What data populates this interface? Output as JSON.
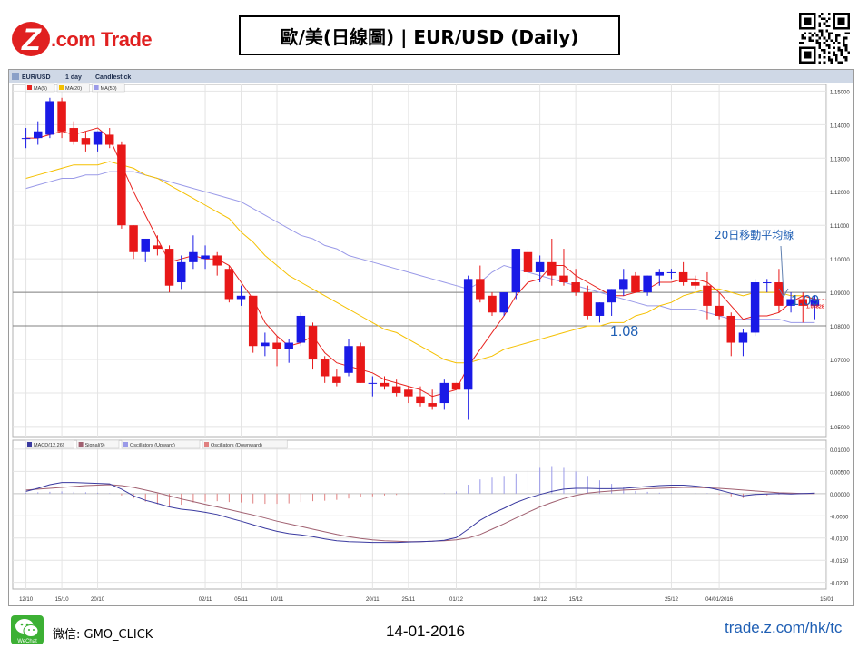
{
  "brand": {
    "logo_text": "Z.com Trade",
    "logo_colors": {
      "z": "#e02020",
      "trade": "#e02020"
    }
  },
  "header": {
    "title": "歐/美(日線圖) | EUR/USD (Daily)"
  },
  "qr": {
    "icon": "qr-code"
  },
  "chart_toolbar": {
    "symbol": "EUR/USD",
    "interval": "1 day",
    "style": "Candlestick"
  },
  "main_legend": [
    {
      "label": "MA(5)",
      "color": "#e8231f"
    },
    {
      "label": "MA(20)",
      "color": "#f5c000"
    },
    {
      "label": "MA(50)",
      "color": "#9a9ae8"
    }
  ],
  "macd_legend": [
    {
      "label": "MACD(12,26)",
      "color": "#3a3aa0"
    },
    {
      "label": "Signal(9)",
      "color": "#a06070"
    },
    {
      "label": "Oscillators (Upward)",
      "color": "#9a9ae8"
    },
    {
      "label": "Oscillators (Downward)",
      "color": "#e08080"
    }
  ],
  "annotations": {
    "ma20_note": "20日移動平均線",
    "level_109": "1.09",
    "level_108": "1.08",
    "last_price": "1.08828"
  },
  "colors": {
    "up_candle": "#1a1ae6",
    "down_candle": "#e81818",
    "ma5": "#e8231f",
    "ma20": "#f5c000",
    "ma50": "#9a9ae8",
    "macd": "#3a3aa0",
    "signal": "#a06070",
    "annotation": "#1f5fb4",
    "hline": "#808080"
  },
  "chart_data": [
    {
      "type": "candlestick",
      "title": "EUR/USD 1 day Candlestick",
      "y_ticks": [
        "1.15000",
        "1.14000",
        "1.13000",
        "1.12000",
        "1.11000",
        "1.10000",
        "1.09000",
        "1.08000",
        "1.07000",
        "1.06000",
        "1.05000"
      ],
      "ylim": [
        1.047,
        1.152
      ],
      "x_tick_labels": [
        {
          "index": 0,
          "label": "12/10"
        },
        {
          "index": 3,
          "label": "15/10"
        },
        {
          "index": 6,
          "label": "20/10"
        },
        {
          "index": 15,
          "label": "02/11"
        },
        {
          "index": 18,
          "label": "05/11"
        },
        {
          "index": 21,
          "label": "10/11"
        },
        {
          "index": 29,
          "label": "20/11"
        },
        {
          "index": 32,
          "label": "25/11"
        },
        {
          "index": 36,
          "label": "01/12"
        },
        {
          "index": 43,
          "label": "10/12"
        },
        {
          "index": 46,
          "label": "15/12"
        },
        {
          "index": 54,
          "label": "25/12"
        },
        {
          "index": 58,
          "label": "04/01/2016"
        },
        {
          "index": 67,
          "label": "15/01"
        }
      ],
      "horizontal_lines": [
        1.09,
        1.08
      ],
      "candles": [
        {
          "o": 1.136,
          "h": 1.139,
          "l": 1.133,
          "c": 1.136
        },
        {
          "o": 1.136,
          "h": 1.141,
          "l": 1.134,
          "c": 1.138
        },
        {
          "o": 1.137,
          "h": 1.148,
          "l": 1.136,
          "c": 1.147
        },
        {
          "o": 1.147,
          "h": 1.148,
          "l": 1.136,
          "c": 1.138
        },
        {
          "o": 1.139,
          "h": 1.141,
          "l": 1.134,
          "c": 1.135
        },
        {
          "o": 1.136,
          "h": 1.138,
          "l": 1.132,
          "c": 1.134
        },
        {
          "o": 1.134,
          "h": 1.138,
          "l": 1.132,
          "c": 1.138
        },
        {
          "o": 1.137,
          "h": 1.139,
          "l": 1.133,
          "c": 1.134
        },
        {
          "o": 1.134,
          "h": 1.135,
          "l": 1.109,
          "c": 1.11
        },
        {
          "o": 1.11,
          "h": 1.11,
          "l": 1.1,
          "c": 1.102
        },
        {
          "o": 1.102,
          "h": 1.106,
          "l": 1.099,
          "c": 1.106
        },
        {
          "o": 1.104,
          "h": 1.107,
          "l": 1.101,
          "c": 1.103
        },
        {
          "o": 1.103,
          "h": 1.104,
          "l": 1.09,
          "c": 1.092
        },
        {
          "o": 1.093,
          "h": 1.101,
          "l": 1.091,
          "c": 1.099
        },
        {
          "o": 1.099,
          "h": 1.107,
          "l": 1.097,
          "c": 1.102
        },
        {
          "o": 1.1,
          "h": 1.104,
          "l": 1.097,
          "c": 1.101
        },
        {
          "o": 1.101,
          "h": 1.102,
          "l": 1.095,
          "c": 1.098
        },
        {
          "o": 1.097,
          "h": 1.098,
          "l": 1.087,
          "c": 1.088
        },
        {
          "o": 1.088,
          "h": 1.092,
          "l": 1.086,
          "c": 1.089
        },
        {
          "o": 1.089,
          "h": 1.089,
          "l": 1.072,
          "c": 1.074
        },
        {
          "o": 1.074,
          "h": 1.078,
          "l": 1.071,
          "c": 1.075
        },
        {
          "o": 1.075,
          "h": 1.077,
          "l": 1.068,
          "c": 1.073
        },
        {
          "o": 1.073,
          "h": 1.076,
          "l": 1.069,
          "c": 1.075
        },
        {
          "o": 1.075,
          "h": 1.084,
          "l": 1.074,
          "c": 1.083
        },
        {
          "o": 1.08,
          "h": 1.081,
          "l": 1.067,
          "c": 1.07
        },
        {
          "o": 1.07,
          "h": 1.071,
          "l": 1.063,
          "c": 1.065
        },
        {
          "o": 1.065,
          "h": 1.067,
          "l": 1.062,
          "c": 1.063
        },
        {
          "o": 1.066,
          "h": 1.076,
          "l": 1.065,
          "c": 1.074
        },
        {
          "o": 1.074,
          "h": 1.075,
          "l": 1.063,
          "c": 1.063
        },
        {
          "o": 1.063,
          "h": 1.065,
          "l": 1.059,
          "c": 1.063
        },
        {
          "o": 1.063,
          "h": 1.065,
          "l": 1.061,
          "c": 1.062
        },
        {
          "o": 1.062,
          "h": 1.064,
          "l": 1.059,
          "c": 1.06
        },
        {
          "o": 1.061,
          "h": 1.062,
          "l": 1.057,
          "c": 1.059
        },
        {
          "o": 1.059,
          "h": 1.062,
          "l": 1.056,
          "c": 1.057
        },
        {
          "o": 1.057,
          "h": 1.061,
          "l": 1.055,
          "c": 1.056
        },
        {
          "o": 1.057,
          "h": 1.064,
          "l": 1.055,
          "c": 1.063
        },
        {
          "o": 1.063,
          "h": 1.063,
          "l": 1.061,
          "c": 1.061
        },
        {
          "o": 1.061,
          "h": 1.095,
          "l": 1.052,
          "c": 1.094
        },
        {
          "o": 1.094,
          "h": 1.098,
          "l": 1.087,
          "c": 1.088
        },
        {
          "o": 1.089,
          "h": 1.09,
          "l": 1.083,
          "c": 1.084
        },
        {
          "o": 1.084,
          "h": 1.09,
          "l": 1.083,
          "c": 1.09
        },
        {
          "o": 1.09,
          "h": 1.103,
          "l": 1.088,
          "c": 1.103
        },
        {
          "o": 1.102,
          "h": 1.103,
          "l": 1.094,
          "c": 1.096
        },
        {
          "o": 1.096,
          "h": 1.101,
          "l": 1.093,
          "c": 1.099
        },
        {
          "o": 1.099,
          "h": 1.106,
          "l": 1.092,
          "c": 1.095
        },
        {
          "o": 1.095,
          "h": 1.103,
          "l": 1.092,
          "c": 1.093
        },
        {
          "o": 1.093,
          "h": 1.097,
          "l": 1.089,
          "c": 1.09
        },
        {
          "o": 1.09,
          "h": 1.092,
          "l": 1.082,
          "c": 1.083
        },
        {
          "o": 1.083,
          "h": 1.087,
          "l": 1.081,
          "c": 1.087
        },
        {
          "o": 1.087,
          "h": 1.091,
          "l": 1.083,
          "c": 1.091
        },
        {
          "o": 1.091,
          "h": 1.097,
          "l": 1.089,
          "c": 1.094
        },
        {
          "o": 1.095,
          "h": 1.096,
          "l": 1.09,
          "c": 1.09
        },
        {
          "o": 1.09,
          "h": 1.095,
          "l": 1.089,
          "c": 1.095
        },
        {
          "o": 1.095,
          "h": 1.097,
          "l": 1.092,
          "c": 1.096
        },
        {
          "o": 1.096,
          "h": 1.097,
          "l": 1.094,
          "c": 1.096
        },
        {
          "o": 1.096,
          "h": 1.099,
          "l": 1.092,
          "c": 1.093
        },
        {
          "o": 1.093,
          "h": 1.095,
          "l": 1.091,
          "c": 1.092
        },
        {
          "o": 1.092,
          "h": 1.096,
          "l": 1.082,
          "c": 1.086
        },
        {
          "o": 1.086,
          "h": 1.09,
          "l": 1.082,
          "c": 1.083
        },
        {
          "o": 1.083,
          "h": 1.084,
          "l": 1.071,
          "c": 1.075
        },
        {
          "o": 1.075,
          "h": 1.079,
          "l": 1.071,
          "c": 1.078
        },
        {
          "o": 1.078,
          "h": 1.094,
          "l": 1.077,
          "c": 1.093
        },
        {
          "o": 1.093,
          "h": 1.094,
          "l": 1.09,
          "c": 1.093
        },
        {
          "o": 1.093,
          "h": 1.097,
          "l": 1.084,
          "c": 1.086
        },
        {
          "o": 1.086,
          "h": 1.09,
          "l": 1.084,
          "c": 1.088
        },
        {
          "o": 1.088,
          "h": 1.09,
          "l": 1.081,
          "c": 1.086
        },
        {
          "o": 1.086,
          "h": 1.089,
          "l": 1.082,
          "c": 1.088
        }
      ],
      "ma5": [
        1.136,
        1.136,
        1.137,
        1.138,
        1.137,
        1.138,
        1.139,
        1.136,
        1.128,
        1.12,
        1.113,
        1.106,
        1.099,
        1.1,
        1.101,
        1.1,
        1.1,
        1.098,
        1.093,
        1.088,
        1.081,
        1.077,
        1.074,
        1.075,
        1.077,
        1.072,
        1.069,
        1.068,
        1.067,
        1.066,
        1.064,
        1.063,
        1.062,
        1.061,
        1.059,
        1.06,
        1.061,
        1.068,
        1.073,
        1.078,
        1.083,
        1.089,
        1.093,
        1.094,
        1.098,
        1.098,
        1.095,
        1.093,
        1.091,
        1.089,
        1.089,
        1.09,
        1.091,
        1.093,
        1.093,
        1.094,
        1.094,
        1.093,
        1.09,
        1.086,
        1.082,
        1.083,
        1.083,
        1.084,
        1.087,
        1.089,
        1.088
      ],
      "ma20": [
        1.124,
        1.125,
        1.126,
        1.127,
        1.128,
        1.128,
        1.128,
        1.129,
        1.128,
        1.127,
        1.125,
        1.124,
        1.122,
        1.12,
        1.118,
        1.116,
        1.114,
        1.112,
        1.108,
        1.105,
        1.101,
        1.098,
        1.095,
        1.093,
        1.091,
        1.089,
        1.087,
        1.085,
        1.083,
        1.081,
        1.079,
        1.078,
        1.076,
        1.074,
        1.072,
        1.07,
        1.069,
        1.069,
        1.07,
        1.071,
        1.073,
        1.074,
        1.075,
        1.076,
        1.077,
        1.078,
        1.079,
        1.08,
        1.08,
        1.081,
        1.081,
        1.083,
        1.084,
        1.086,
        1.087,
        1.089,
        1.09,
        1.091,
        1.091,
        1.09,
        1.089,
        1.09,
        1.09,
        1.09,
        1.089,
        1.089,
        1.088
      ],
      "ma50": [
        1.121,
        1.122,
        1.123,
        1.124,
        1.124,
        1.125,
        1.125,
        1.126,
        1.126,
        1.126,
        1.125,
        1.124,
        1.123,
        1.122,
        1.121,
        1.12,
        1.119,
        1.118,
        1.117,
        1.115,
        1.113,
        1.111,
        1.109,
        1.107,
        1.106,
        1.104,
        1.103,
        1.101,
        1.1,
        1.099,
        1.098,
        1.097,
        1.096,
        1.095,
        1.094,
        1.093,
        1.092,
        1.091,
        1.093,
        1.096,
        1.098,
        1.097,
        1.096,
        1.095,
        1.094,
        1.093,
        1.092,
        1.091,
        1.09,
        1.089,
        1.088,
        1.087,
        1.086,
        1.086,
        1.085,
        1.085,
        1.085,
        1.084,
        1.083,
        1.082,
        1.082,
        1.082,
        1.082,
        1.082,
        1.081,
        1.081,
        1.081
      ]
    },
    {
      "type": "line",
      "title": "MACD(12,26) Signal(9)",
      "y_ticks": [
        "0.01000",
        "0.00500",
        "0.00000",
        "-0.0050",
        "-0.0100",
        "-0.0150",
        "-0.0200"
      ],
      "ylim": [
        -0.0215,
        0.0108
      ],
      "macd": [
        0.0005,
        0.0012,
        0.002,
        0.0025,
        0.0025,
        0.0024,
        0.0023,
        0.0022,
        0.001,
        -0.0005,
        -0.0015,
        -0.0022,
        -0.003,
        -0.0035,
        -0.0038,
        -0.0042,
        -0.0047,
        -0.0055,
        -0.0062,
        -0.007,
        -0.0078,
        -0.0085,
        -0.009,
        -0.0093,
        -0.0097,
        -0.0102,
        -0.0106,
        -0.0108,
        -0.0109,
        -0.011,
        -0.011,
        -0.011,
        -0.0109,
        -0.0108,
        -0.0107,
        -0.0105,
        -0.0099,
        -0.008,
        -0.006,
        -0.0045,
        -0.0033,
        -0.002,
        -0.001,
        -0.0002,
        0.0005,
        0.001,
        0.0012,
        0.0012,
        0.0011,
        0.0011,
        0.0012,
        0.0014,
        0.0016,
        0.0018,
        0.0019,
        0.0019,
        0.0017,
        0.0014,
        0.0008,
        0.0001,
        -0.0005,
        -0.0002,
        -0.0001,
        0.0,
        -0.0001,
        0.0,
        0.0001
      ],
      "signal": [
        0.0008,
        0.001,
        0.0012,
        0.0014,
        0.0016,
        0.0018,
        0.0019,
        0.002,
        0.0018,
        0.0014,
        0.0008,
        0.0002,
        -0.0005,
        -0.0012,
        -0.0018,
        -0.0024,
        -0.003,
        -0.0036,
        -0.0042,
        -0.0048,
        -0.0055,
        -0.0062,
        -0.0068,
        -0.0074,
        -0.008,
        -0.0086,
        -0.0092,
        -0.0097,
        -0.0101,
        -0.0104,
        -0.0106,
        -0.0107,
        -0.0108,
        -0.0108,
        -0.0107,
        -0.0106,
        -0.0104,
        -0.01,
        -0.0092,
        -0.008,
        -0.0068,
        -0.0055,
        -0.0042,
        -0.003,
        -0.002,
        -0.0011,
        -0.0004,
        0.0001,
        0.0004,
        0.0006,
        0.0008,
        0.0009,
        0.0011,
        0.0012,
        0.0013,
        0.0014,
        0.0014,
        0.0013,
        0.0012,
        0.001,
        0.0008,
        0.0006,
        0.0004,
        0.0002,
        0.0001,
        0.0,
        0.0
      ],
      "histogram": [
        0.0002,
        0.0003,
        0.0004,
        0.0005,
        0.0004,
        0.0003,
        0.0002,
        0.0001,
        -0.0004,
        -0.0011,
        -0.0018,
        -0.0024,
        -0.0028,
        -0.0025,
        -0.002,
        -0.0018,
        -0.0017,
        -0.0019,
        -0.002,
        -0.0022,
        -0.0023,
        -0.0023,
        -0.0022,
        -0.0019,
        -0.0017,
        -0.0016,
        -0.0014,
        -0.0011,
        -0.0008,
        -0.0006,
        -0.0004,
        -0.0003,
        -0.0001,
        0.0,
        0.0,
        0.0001,
        0.0005,
        0.002,
        0.0032,
        0.0036,
        0.004,
        0.0045,
        0.0052,
        0.0058,
        0.0062,
        0.0058,
        0.005,
        0.004,
        0.003,
        0.0022,
        0.0014,
        0.0006,
        0.0004,
        0.0002,
        0.0001,
        0.0,
        0.0001,
        0.0001,
        -0.0002,
        -0.0006,
        -0.001,
        -0.0008,
        -0.0004,
        -0.0002,
        -0.0001,
        0.0,
        0.0
      ]
    }
  ],
  "footer": {
    "wechat_icon": "wechat-logo",
    "wechat_icon_text": "WeChat",
    "wechat": "微信: GMO_CLICK",
    "date": "14-01-2016",
    "url": "trade.z.com/hk/tc"
  }
}
